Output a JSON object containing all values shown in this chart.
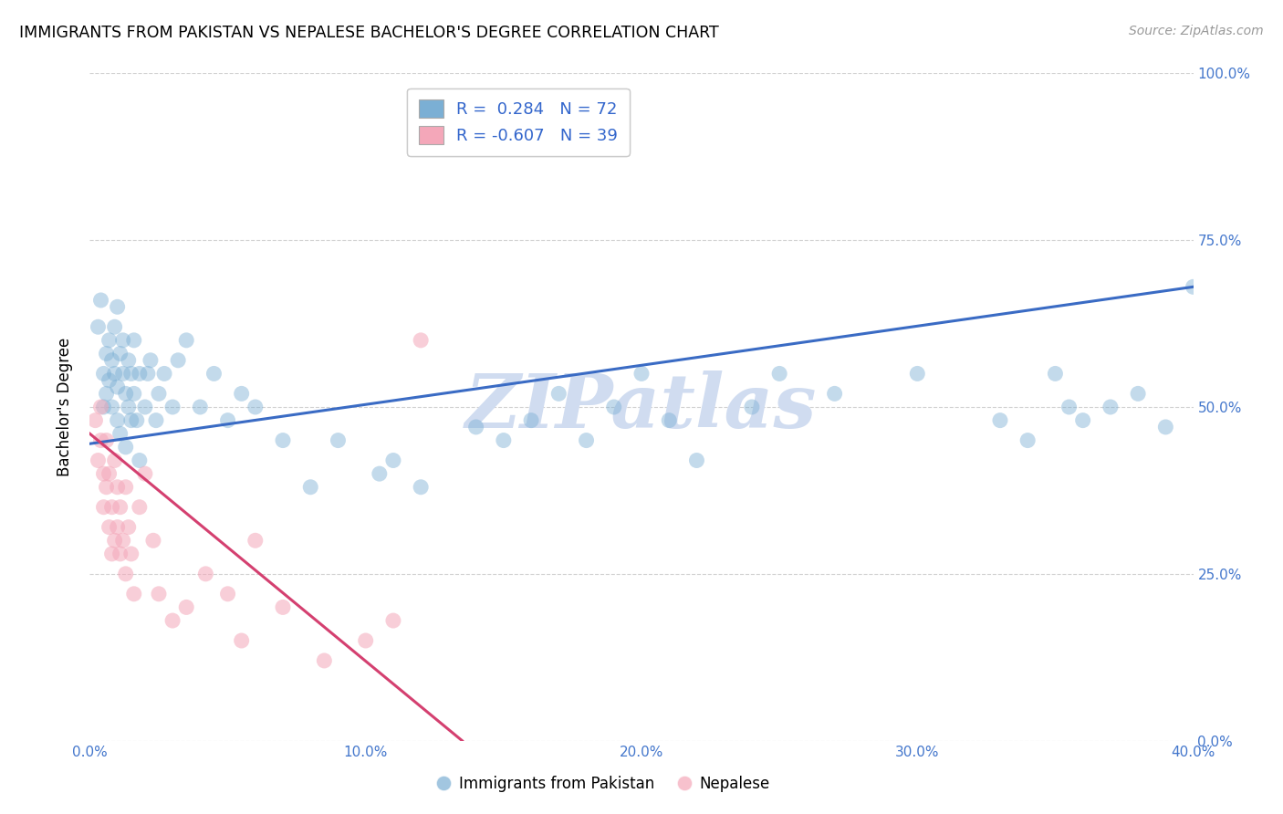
{
  "title": "IMMIGRANTS FROM PAKISTAN VS NEPALESE BACHELOR'S DEGREE CORRELATION CHART",
  "source": "Source: ZipAtlas.com",
  "ylabel": "Bachelor's Degree",
  "xlim": [
    0.0,
    40.0
  ],
  "ylim": [
    0.0,
    100.0
  ],
  "xticks": [
    0.0,
    10.0,
    20.0,
    30.0,
    40.0
  ],
  "yticks": [
    0.0,
    25.0,
    50.0,
    75.0,
    100.0
  ],
  "xtick_labels": [
    "0.0%",
    "10.0%",
    "20.0%",
    "30.0%",
    "40.0%"
  ],
  "ytick_labels": [
    "0.0%",
    "25.0%",
    "50.0%",
    "75.0%",
    "100.0%"
  ],
  "blue_R": 0.284,
  "blue_N": 72,
  "pink_R": -0.607,
  "pink_N": 39,
  "blue_color": "#7BAFD4",
  "pink_color": "#F4A7B9",
  "blue_line_color": "#3A6BC4",
  "pink_line_color": "#D44070",
  "watermark_color": "#D0DCF0",
  "legend_label_blue": "Immigrants from Pakistan",
  "legend_label_pink": "Nepalese",
  "blue_trend_x": [
    0.0,
    40.0
  ],
  "blue_trend_y": [
    44.5,
    68.0
  ],
  "pink_trend_x": [
    0.0,
    13.5
  ],
  "pink_trend_y": [
    46.0,
    0.0
  ],
  "blue_x": [
    0.3,
    0.4,
    0.5,
    0.5,
    0.6,
    0.6,
    0.7,
    0.7,
    0.8,
    0.8,
    0.9,
    0.9,
    1.0,
    1.0,
    1.0,
    1.1,
    1.1,
    1.2,
    1.2,
    1.3,
    1.3,
    1.4,
    1.4,
    1.5,
    1.5,
    1.6,
    1.6,
    1.7,
    1.8,
    1.8,
    2.0,
    2.1,
    2.2,
    2.4,
    2.5,
    2.7,
    3.0,
    3.2,
    3.5,
    4.0,
    4.5,
    5.0,
    5.5,
    6.0,
    7.0,
    8.0,
    9.0,
    10.5,
    11.0,
    12.0,
    14.0,
    15.0,
    16.0,
    17.0,
    18.0,
    19.0,
    20.0,
    21.0,
    22.0,
    24.0,
    25.0,
    27.0,
    30.0,
    33.0,
    35.0,
    36.0,
    37.0,
    38.0,
    39.0,
    40.0,
    35.5,
    34.0
  ],
  "blue_y": [
    62,
    66,
    55,
    50,
    58,
    52,
    60,
    54,
    57,
    50,
    62,
    55,
    53,
    48,
    65,
    58,
    46,
    55,
    60,
    52,
    44,
    50,
    57,
    55,
    48,
    60,
    52,
    48,
    55,
    42,
    50,
    55,
    57,
    48,
    52,
    55,
    50,
    57,
    60,
    50,
    55,
    48,
    52,
    50,
    45,
    38,
    45,
    40,
    42,
    38,
    47,
    45,
    48,
    52,
    45,
    50,
    55,
    48,
    42,
    50,
    55,
    52,
    55,
    48,
    55,
    48,
    50,
    52,
    47,
    68,
    50,
    45
  ],
  "pink_x": [
    0.2,
    0.3,
    0.4,
    0.4,
    0.5,
    0.5,
    0.6,
    0.6,
    0.7,
    0.7,
    0.8,
    0.8,
    0.9,
    0.9,
    1.0,
    1.0,
    1.1,
    1.1,
    1.2,
    1.3,
    1.3,
    1.4,
    1.5,
    1.6,
    1.8,
    2.0,
    2.3,
    2.5,
    3.0,
    3.5,
    4.2,
    5.0,
    5.5,
    6.0,
    7.0,
    8.5,
    10.0,
    11.0,
    12.0
  ],
  "pink_y": [
    48,
    42,
    50,
    45,
    40,
    35,
    45,
    38,
    40,
    32,
    35,
    28,
    42,
    30,
    38,
    32,
    28,
    35,
    30,
    38,
    25,
    32,
    28,
    22,
    35,
    40,
    30,
    22,
    18,
    20,
    25,
    22,
    15,
    30,
    20,
    12,
    15,
    18,
    60
  ]
}
